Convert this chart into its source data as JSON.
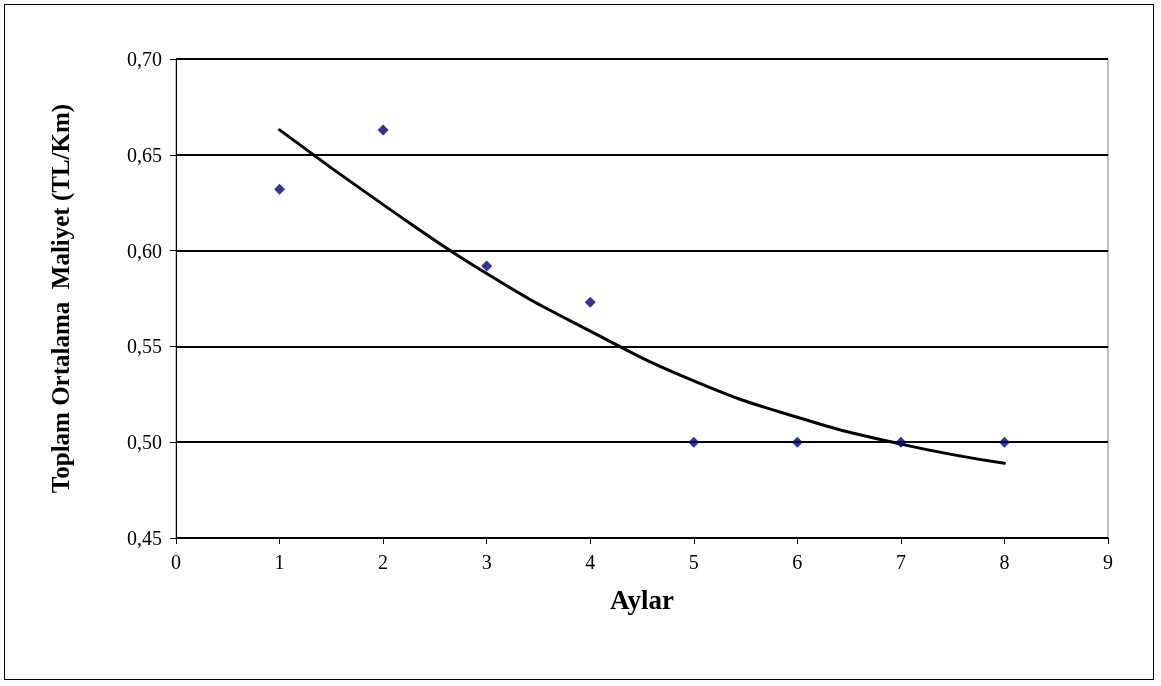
{
  "chart_data": {
    "type": "scatter",
    "xlabel": "Aylar",
    "ylabel": "Toplam Ortalama  Maliyet (TL/Km)",
    "xlim": [
      0,
      9
    ],
    "xticks": [
      0,
      1,
      2,
      3,
      4,
      5,
      6,
      7,
      8,
      9
    ],
    "ylim": [
      0.45,
      0.7
    ],
    "yticks": [
      {
        "value": 0.45,
        "label": "0,45"
      },
      {
        "value": 0.5,
        "label": "0,50"
      },
      {
        "value": 0.55,
        "label": "0,55"
      },
      {
        "value": 0.6,
        "label": "0,60"
      },
      {
        "value": 0.65,
        "label": "0,65"
      },
      {
        "value": 0.7,
        "label": "0,70"
      }
    ],
    "grid": "y",
    "marker": "diamond",
    "series": [
      {
        "color": "#000080",
        "x": [
          1,
          2,
          3,
          4,
          5,
          6,
          7,
          8
        ],
        "values": [
          0.632,
          0.663,
          0.592,
          0.573,
          0.5,
          0.5,
          0.5,
          0.5
        ]
      },
      {
        "type": "line",
        "color": "#000000",
        "marker": "none",
        "line_style": "solid",
        "x": [
          1,
          2,
          3,
          4,
          5,
          6,
          7,
          8
        ],
        "values": [
          0.663,
          0.624,
          0.588,
          0.558,
          0.532,
          0.513,
          0.499,
          0.489
        ]
      }
    ]
  }
}
